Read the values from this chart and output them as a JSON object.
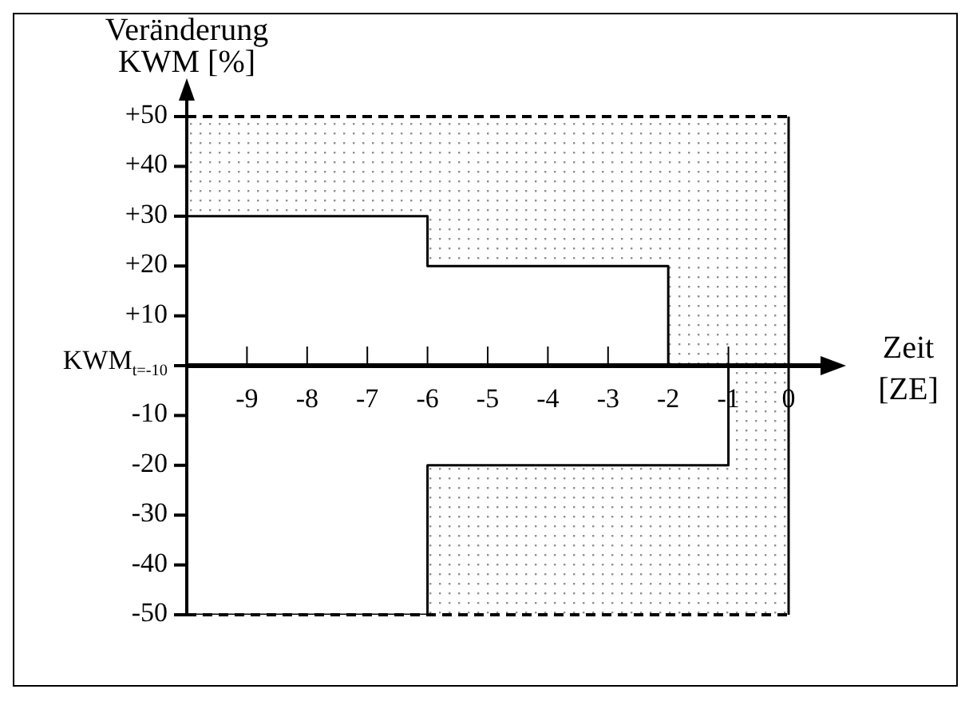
{
  "chart_data": {
    "type": "step",
    "xlabel": "Zeit [ZE]",
    "ylabel": "Veränderung KWM [%]",
    "xlim": [
      -10,
      0
    ],
    "ylim": [
      -50,
      50
    ],
    "xticks": [
      -9,
      -8,
      -7,
      -6,
      -5,
      -4,
      -3,
      -2,
      -1,
      0
    ],
    "yticks": [
      {
        "value": -50,
        "label": "-50"
      },
      {
        "value": -40,
        "label": "-40"
      },
      {
        "value": -30,
        "label": "-30"
      },
      {
        "value": -20,
        "label": "-20"
      },
      {
        "value": -10,
        "label": "-10"
      },
      {
        "value": 0,
        "label": null
      },
      {
        "value": 10,
        "label": "+10"
      },
      {
        "value": 20,
        "label": "+20"
      },
      {
        "value": 30,
        "label": "+30"
      },
      {
        "value": 40,
        "label": "+40"
      },
      {
        "value": 50,
        "label": "+50"
      }
    ],
    "series": [
      {
        "color": "#000000",
        "x": [
          -10,
          -6,
          -2,
          0
        ],
        "values": [
          30,
          20,
          0,
          0
        ],
        "lower": [
          30,
          20,
          0,
          0
        ],
        "upper": [
          50,
          50,
          50,
          50
        ]
      },
      {
        "color": "#000000",
        "x": [
          -10,
          -6,
          -1,
          0
        ],
        "values": [
          -50,
          -20,
          0,
          0
        ],
        "lower": [
          -50,
          -50,
          -50,
          -50
        ],
        "upper": [
          -50,
          -20,
          0,
          0
        ]
      }
    ],
    "ref_lines": [
      {
        "axis": "y",
        "value": 50,
        "color": "#000000",
        "line_style": "dashed"
      },
      {
        "axis": "y",
        "value": -50,
        "color": "#000000",
        "line_style": "dashed"
      },
      {
        "axis": "x",
        "value": 0,
        "color": "#000000",
        "line_style": "solid"
      }
    ],
    "annotations": [
      "KWM$_{t=-10}$"
    ]
  }
}
